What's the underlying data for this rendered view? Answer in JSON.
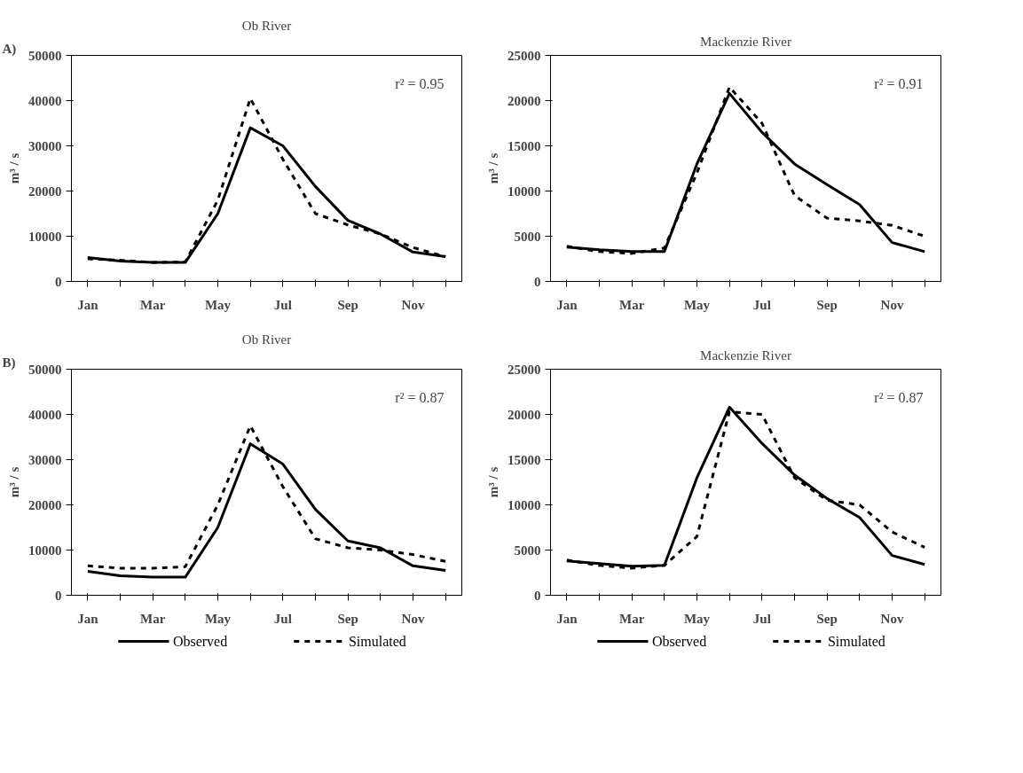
{
  "chart_data": [
    {
      "type": "line",
      "title": "Ob River",
      "ylabel": "m³ / s",
      "categories": [
        "Jan",
        null,
        "Mar",
        null,
        "May",
        null,
        "Jul",
        null,
        "Sep",
        null,
        "Nov",
        null
      ],
      "ylim": [
        0,
        50000
      ],
      "yticks": [
        0,
        10000,
        20000,
        30000,
        40000,
        50000
      ],
      "annotations": [
        "A)",
        "r² = 0.95"
      ],
      "series": [
        {
          "color": "#000000",
          "line_style": "solid",
          "values": [
            5300,
            4500,
            4200,
            4200,
            15000,
            34000,
            30000,
            21000,
            13500,
            10500,
            6500,
            5500
          ]
        },
        {
          "color": "#000000",
          "line_style": "dashed",
          "values": [
            5000,
            4700,
            4200,
            4300,
            18000,
            40500,
            27000,
            15000,
            12500,
            10500,
            7500,
            5500
          ]
        }
      ]
    },
    {
      "type": "line",
      "title": "Mackenzie River",
      "ylabel": "m³ / s",
      "categories": [
        "Jan",
        null,
        "Mar",
        null,
        "May",
        null,
        "Jul",
        null,
        "Sep",
        null,
        "Nov",
        null
      ],
      "ylim": [
        0,
        25000
      ],
      "yticks": [
        0,
        5000,
        10000,
        15000,
        20000,
        25000
      ],
      "annotations": [
        "r² = 0.91"
      ],
      "series": [
        {
          "color": "#000000",
          "line_style": "solid",
          "values": [
            3800,
            3500,
            3300,
            3300,
            13000,
            20800,
            16500,
            13000,
            10700,
            8500,
            4300,
            3300
          ]
        },
        {
          "color": "#000000",
          "line_style": "dashed",
          "values": [
            3900,
            3300,
            3100,
            3700,
            12000,
            21500,
            17500,
            9500,
            7000,
            6700,
            6200,
            5000
          ]
        }
      ]
    },
    {
      "type": "line",
      "title": "Ob River",
      "ylabel": "m³ / s",
      "categories": [
        "Jan",
        null,
        "Mar",
        null,
        "May",
        null,
        "Jul",
        null,
        "Sep",
        null,
        "Nov",
        null
      ],
      "ylim": [
        0,
        50000
      ],
      "yticks": [
        0,
        10000,
        20000,
        30000,
        40000,
        50000
      ],
      "annotations": [
        "B)",
        "r² = 0.87"
      ],
      "legend": "bottom",
      "series": [
        {
          "name": "Observed",
          "color": "#000000",
          "line_style": "solid",
          "values": [
            5300,
            4300,
            4000,
            4000,
            15000,
            33500,
            29000,
            19000,
            12000,
            10500,
            6500,
            5500
          ]
        },
        {
          "name": "Simulated",
          "color": "#000000",
          "line_style": "dashed",
          "values": [
            6500,
            6000,
            6000,
            6300,
            20000,
            37500,
            24000,
            12500,
            10500,
            10000,
            9000,
            7500
          ]
        }
      ]
    },
    {
      "type": "line",
      "title": "Mackenzie River",
      "ylabel": "m³ / s",
      "categories": [
        "Jan",
        null,
        "Mar",
        null,
        "May",
        null,
        "Jul",
        null,
        "Sep",
        null,
        "Nov",
        null
      ],
      "ylim": [
        0,
        25000
      ],
      "yticks": [
        0,
        5000,
        10000,
        15000,
        20000,
        25000
      ],
      "annotations": [
        "r² = 0.87"
      ],
      "legend": "bottom",
      "series": [
        {
          "name": "Observed",
          "color": "#000000",
          "line_style": "solid",
          "values": [
            3800,
            3500,
            3200,
            3300,
            13000,
            20800,
            16800,
            13300,
            10700,
            8600,
            4400,
            3400
          ]
        },
        {
          "name": "Simulated",
          "color": "#000000",
          "line_style": "dashed",
          "values": [
            3900,
            3300,
            3000,
            3300,
            6500,
            20300,
            20000,
            13000,
            10500,
            10000,
            7000,
            5300
          ]
        }
      ]
    }
  ]
}
